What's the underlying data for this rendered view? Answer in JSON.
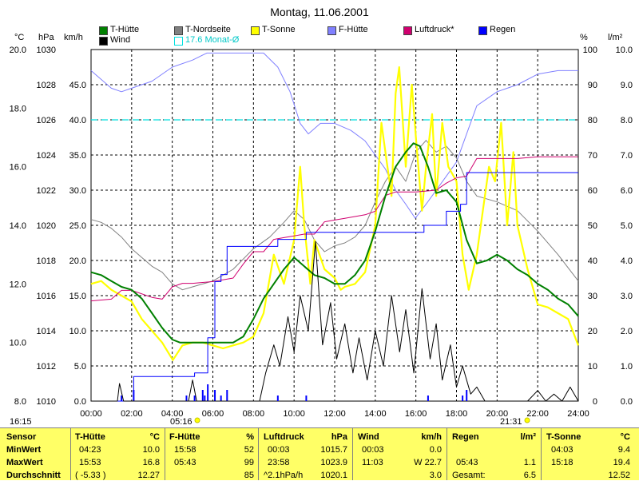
{
  "title": "Montag, 11.06.2001",
  "axis_units": {
    "celsius": "°C",
    "hpa": "hPa",
    "kmh": "km/h",
    "percent": "%",
    "rain": "l/m²"
  },
  "start_time": "16:15",
  "sunrise": "05:16",
  "sunset": "21:31",
  "legend": [
    {
      "label": "T-Hütte",
      "color": "#008000"
    },
    {
      "label": "Wind",
      "color": "#000000"
    },
    {
      "label": "T-Nordseite",
      "color": "#808080"
    },
    {
      "label": "17.6 Monat-Ø",
      "color": "#00e0e0"
    },
    {
      "label": "T-Sonne",
      "color": "#ffff00"
    },
    {
      "label": "F-Hütte",
      "color": "#8080ff"
    },
    {
      "label": "Luftdruck*",
      "color": "#d0006f"
    },
    {
      "label": "Regen",
      "color": "#0000ff"
    }
  ],
  "table": {
    "row_labels": [
      "Sensor",
      "MinWert",
      "MaxWert",
      "Durchschnitt"
    ],
    "sections": [
      {
        "name": "T-Hütte",
        "unit": "°C",
        "min": [
          "04:23",
          "10.0"
        ],
        "max": [
          "15:53",
          "16.8"
        ],
        "avg": [
          "( -5.33 )",
          "12.27"
        ]
      },
      {
        "name": "F-Hütte",
        "unit": "%",
        "min": [
          "15:58",
          "52"
        ],
        "max": [
          "05:43",
          "99"
        ],
        "avg": [
          "",
          "85"
        ]
      },
      {
        "name": "Luftdruck",
        "unit": "hPa",
        "min": [
          "00:03",
          "1015.7"
        ],
        "max": [
          "23:58",
          "1023.9"
        ],
        "avg": [
          "^2.1hPa/h",
          "1020.1"
        ]
      },
      {
        "name": "Wind",
        "unit": "km/h",
        "min": [
          "00:03",
          "0.0"
        ],
        "max": [
          "11:03",
          "W 22.7"
        ],
        "avg": [
          "",
          "3.0"
        ]
      },
      {
        "name": "Regen",
        "unit": "l/m²",
        "min": [
          "",
          ""
        ],
        "max": [
          "05:43",
          "1.1"
        ],
        "avg": [
          "Gesamt:",
          "6.5"
        ]
      },
      {
        "name": "T-Sonne",
        "unit": "°C",
        "min": [
          "04:03",
          "9.4"
        ],
        "max": [
          "15:18",
          "19.4"
        ],
        "avg": [
          "",
          "12.52"
        ]
      }
    ]
  },
  "chart_data": {
    "type": "line",
    "title": "Montag, 11.06.2001",
    "x_ticks": [
      "00:00",
      "02:00",
      "04:00",
      "06:00",
      "08:00",
      "10:00",
      "12:00",
      "14:00",
      "16:00",
      "18:00",
      "20:00",
      "22:00",
      "24:00"
    ],
    "xlim": [
      0,
      24
    ],
    "axes": {
      "celsius": {
        "range": [
          8,
          20
        ],
        "ticks": [
          "8.0",
          "10.0",
          "12.0",
          "14.0",
          "16.0",
          "18.0",
          "20.0"
        ]
      },
      "hpa": {
        "range": [
          1010,
          1030
        ],
        "ticks": [
          "1010",
          "1012",
          "1014",
          "1016",
          "1018",
          "1020",
          "1022",
          "1024",
          "1026",
          "1028",
          "1030"
        ]
      },
      "kmh": {
        "range": [
          0,
          50
        ],
        "ticks": [
          "0.0",
          "5.0",
          "10.0",
          "15.0",
          "20.0",
          "25.0",
          "30.0",
          "35.0",
          "40.0",
          "45.0"
        ]
      },
      "percent": {
        "range": [
          0,
          100
        ],
        "ticks": [
          "0",
          "10",
          "20",
          "30",
          "40",
          "50",
          "60",
          "70",
          "80",
          "90",
          "100"
        ]
      },
      "rain": {
        "range": [
          0,
          10
        ],
        "ticks": [
          "0.0",
          "1.0",
          "2.0",
          "3.0",
          "4.0",
          "5.0",
          "6.0",
          "7.0",
          "8.0",
          "9.0",
          "10.0"
        ]
      }
    },
    "monthly_average": {
      "name": "17.6 Monat-Ø",
      "axis": "percent",
      "value": 80
    },
    "series": [
      {
        "name": "F-Hütte",
        "axis": "percent",
        "color": "#8080ff",
        "x": [
          0,
          0.4,
          1,
          1.5,
          2,
          3,
          4,
          5,
          5.7,
          6.5,
          7.5,
          8.5,
          9.2,
          9.8,
          10.3,
          10.7,
          11.3,
          12,
          12.8,
          13.5,
          14,
          14.5,
          15,
          15.5,
          15.97,
          16.5,
          17,
          17.5,
          18,
          18.5,
          19,
          20,
          21,
          22,
          23,
          24
        ],
        "y": [
          94,
          92,
          89,
          88,
          89,
          91,
          95,
          97,
          99,
          99,
          99,
          99,
          95,
          88,
          79,
          76,
          79,
          79,
          77,
          74,
          70,
          66,
          60,
          56,
          52,
          56,
          60,
          64,
          68,
          76,
          84,
          88,
          90,
          93,
          94,
          94
        ]
      },
      {
        "name": "T-Nordseite",
        "axis": "celsius",
        "color": "#808080",
        "x": [
          0,
          0.5,
          1,
          1.5,
          2,
          2.5,
          3,
          3.5,
          4,
          4.5,
          5,
          6,
          7,
          8,
          8.8,
          9.5,
          10,
          10.5,
          11,
          11.5,
          12,
          12.5,
          13,
          13.5,
          14,
          14.5,
          15,
          15.5,
          16,
          16.5,
          17,
          17.5,
          18,
          18.5,
          19,
          20,
          21,
          22,
          23,
          24
        ],
        "y": [
          14.2,
          14.1,
          13.9,
          13.6,
          13.2,
          12.9,
          12.6,
          12.4,
          12.0,
          11.8,
          11.9,
          12.1,
          12.5,
          13.2,
          13.6,
          14.1,
          14.5,
          14.2,
          13.5,
          13.1,
          13.3,
          13.4,
          13.6,
          14.0,
          14.8,
          15.5,
          16.0,
          15.5,
          16.5,
          16.9,
          16.5,
          16.7,
          16.3,
          15.5,
          15.0,
          14.8,
          14.5,
          13.8,
          13.0,
          12.1
        ]
      },
      {
        "name": "T-Sonne",
        "axis": "celsius",
        "color": "#ffff00",
        "x": [
          0,
          0.5,
          1,
          1.5,
          2,
          2.5,
          3,
          3.5,
          4.03,
          4.5,
          5,
          5.5,
          6,
          6.5,
          7,
          7.5,
          8,
          8.5,
          9,
          9.5,
          10,
          10.3,
          10.5,
          10.8,
          11,
          11.5,
          12,
          12.3,
          12.5,
          13,
          13.5,
          14,
          14.3,
          14.5,
          14.8,
          15,
          15.18,
          15.5,
          15.8,
          16,
          16.3,
          16.5,
          16.8,
          17,
          17.3,
          17.6,
          18,
          18.3,
          18.6,
          19,
          19.3,
          19.6,
          19.9,
          20.2,
          20.5,
          20.8,
          21,
          21.5,
          22,
          22.5,
          23,
          23.5,
          24
        ],
        "y": [
          12.0,
          12.1,
          11.8,
          11.6,
          11.4,
          10.8,
          10.4,
          10.0,
          9.4,
          9.9,
          10.0,
          10.0,
          9.9,
          9.8,
          9.9,
          10.0,
          10.2,
          11.0,
          13.0,
          12.0,
          13.5,
          16.0,
          14.0,
          12.0,
          13.5,
          12.5,
          12.2,
          11.8,
          11.9,
          12.0,
          12.4,
          14.0,
          17.5,
          16.5,
          15.0,
          18.5,
          19.4,
          16.0,
          18.8,
          17.0,
          14.5,
          16.0,
          17.8,
          15.0,
          17.5,
          16.0,
          15.5,
          13.0,
          11.8,
          13.0,
          14.5,
          16.0,
          15.5,
          17.5,
          14.0,
          16.5,
          14.0,
          12.5,
          11.3,
          11.2,
          11.0,
          10.8,
          9.9
        ]
      },
      {
        "name": "Luftdruck*",
        "axis": "hpa",
        "color": "#d0006f",
        "x": [
          0,
          1,
          1.5,
          2,
          3,
          3.5,
          4,
          4.5,
          5,
          6,
          7,
          7.5,
          8,
          8.5,
          9,
          9.5,
          10,
          10.5,
          11,
          11.5,
          12,
          12.5,
          13,
          13.5,
          14,
          14.5,
          15,
          16,
          17,
          17.5,
          18,
          18.5,
          19,
          20,
          21,
          22,
          23,
          23.98
        ],
        "y": [
          1015.7,
          1015.8,
          1016.3,
          1016.3,
          1015.9,
          1015.8,
          1016.5,
          1016.7,
          1016.7,
          1016.8,
          1017.0,
          1017.8,
          1018.5,
          1018.5,
          1019.2,
          1019.3,
          1019.4,
          1019.5,
          1019.5,
          1020.2,
          1020.3,
          1020.4,
          1020.5,
          1020.6,
          1020.8,
          1021.7,
          1021.9,
          1021.9,
          1022.0,
          1022.4,
          1022.7,
          1022.8,
          1023.8,
          1023.8,
          1023.8,
          1023.9,
          1023.9,
          1023.9
        ]
      },
      {
        "name": "T-Hütte",
        "axis": "celsius",
        "color": "#008000",
        "x": [
          0,
          0.5,
          1,
          1.5,
          2,
          2.5,
          3,
          3.5,
          4,
          4.38,
          4.8,
          5.3,
          6,
          6.5,
          7,
          7.5,
          8,
          8.5,
          9,
          9.5,
          10,
          10.5,
          11,
          11.5,
          12,
          12.5,
          13,
          13.5,
          14,
          14.5,
          15,
          15.5,
          15.88,
          16.2,
          16.6,
          17,
          17.5,
          18,
          18.5,
          19,
          19.5,
          20,
          20.5,
          21,
          21.5,
          22,
          22.5,
          23,
          23.5,
          24
        ],
        "y": [
          12.4,
          12.3,
          12.1,
          11.9,
          11.8,
          11.5,
          11.0,
          10.5,
          10.1,
          10.0,
          10.0,
          10.0,
          10.0,
          10.0,
          10.0,
          10.2,
          10.8,
          11.5,
          12.0,
          12.5,
          12.9,
          12.6,
          12.3,
          12.2,
          12.0,
          12.0,
          12.3,
          12.8,
          13.8,
          15.0,
          16.0,
          16.5,
          16.8,
          16.7,
          16.0,
          15.1,
          15.2,
          14.8,
          13.5,
          12.7,
          12.8,
          13.0,
          12.8,
          12.5,
          12.3,
          12.0,
          11.8,
          11.5,
          11.3,
          10.9
        ]
      },
      {
        "name": "Regen",
        "axis": "rain",
        "color": "#0000ff",
        "style": "step",
        "x": [
          0,
          1.5,
          2.1,
          4.7,
          5.1,
          5.6,
          5.75,
          6.1,
          6.4,
          6.7,
          7.0,
          8.5,
          9.2,
          10.3,
          10.6,
          10.9,
          12.1,
          12.4,
          14.2,
          16.4,
          16.6,
          16.9,
          17.2,
          17.5,
          18.2,
          18.5,
          19.5,
          24
        ],
        "y": [
          0.0,
          0.0,
          0.7,
          0.7,
          0.8,
          0.8,
          1.8,
          3.4,
          3.6,
          4.4,
          4.4,
          4.4,
          4.6,
          4.6,
          4.8,
          4.8,
          4.8,
          4.8,
          4.8,
          5.0,
          5.0,
          5.0,
          5.0,
          5.4,
          5.6,
          6.5,
          6.5,
          6.5
        ]
      },
      {
        "name": "Wind",
        "axis": "kmh",
        "color": "#000000",
        "style": "spiky",
        "x": [
          0,
          1.3,
          1.4,
          1.6,
          4.8,
          5.0,
          5.2,
          5.5,
          8.3,
          8.6,
          9.0,
          9.3,
          9.7,
          10.0,
          10.3,
          10.7,
          11.05,
          11.4,
          11.8,
          12.1,
          12.5,
          12.9,
          13.2,
          13.6,
          14.0,
          14.4,
          14.8,
          15.2,
          15.5,
          15.9,
          16.3,
          16.7,
          17.0,
          17.3,
          17.7,
          18.0,
          18.3,
          18.7,
          19.0,
          19.4,
          20.0,
          21.5,
          22.0,
          22.4,
          22.8,
          23.2,
          23.6,
          24
        ],
        "y": [
          0,
          0,
          2.5,
          0,
          0,
          3.0,
          0,
          0,
          0,
          4.0,
          8.0,
          5.0,
          12.0,
          7.0,
          15.0,
          10.0,
          22.7,
          8.0,
          14.0,
          6.0,
          11.0,
          4.0,
          9.0,
          3.0,
          10.0,
          5.0,
          15.0,
          7.0,
          13.0,
          4.0,
          16.0,
          6.0,
          11.0,
          3.0,
          8.0,
          2.0,
          5.0,
          1.0,
          2.0,
          0,
          0,
          0,
          1.5,
          0,
          1.0,
          0,
          2.0,
          0
        ]
      }
    ]
  }
}
